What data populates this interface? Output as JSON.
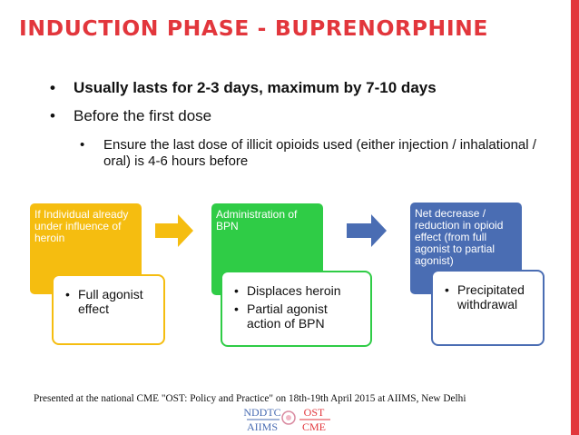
{
  "slide": {
    "title": "INDUCTION PHASE - BUPRENORPHINE",
    "bullets": {
      "b1": "Usually lasts for 2-3 days, maximum by 7-10 days",
      "b2": "Before the first dose",
      "sub": "Ensure the last dose of illicit opioids used (either injection / inhalational / oral) is 4-6 hours before"
    },
    "bullet_char": "•"
  },
  "flow": {
    "steps": [
      {
        "header": "If Individual already under influence of heroin",
        "items": [
          "Full agonist effect"
        ]
      },
      {
        "header": "Administration of BPN",
        "items": [
          "Displaces heroin",
          "Partial agonist action of BPN"
        ]
      },
      {
        "header": "Net decrease / reduction in opioid effect (from full agonist to partial agonist)",
        "items": [
          "Precipitated withdrawal"
        ]
      }
    ],
    "colors": {
      "step1": "#f5bd10",
      "step2": "#2fcc46",
      "step3": "#4a6db3",
      "accent": "#e2363c"
    }
  },
  "footer": {
    "text": "Presented at the national CME \"OST: Policy and Practice\" on 18th-19th April 2015 at AIIMS, New Delhi"
  },
  "logo": {
    "line1_left": "NDDTC",
    "line1_right": "OST",
    "line2_left": "AIIMS",
    "line2_right": "CME"
  }
}
